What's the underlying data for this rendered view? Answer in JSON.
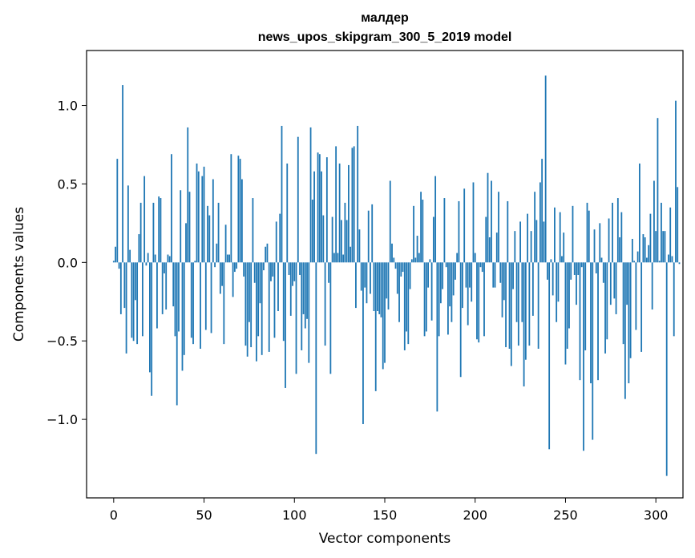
{
  "chart_data": {
    "type": "bar",
    "title_line1": "малдер",
    "title_line2": "news_upos_skipgram_300_5_2019 model",
    "xlabel": "Vector components",
    "ylabel": "Components values",
    "xlim": [
      -15,
      315
    ],
    "ylim": [
      -1.5,
      1.35
    ],
    "xticks": [
      {
        "value": 0,
        "label": "0"
      },
      {
        "value": 50,
        "label": "50"
      },
      {
        "value": 100,
        "label": "100"
      },
      {
        "value": 150,
        "label": "150"
      },
      {
        "value": 200,
        "label": "200"
      },
      {
        "value": 250,
        "label": "250"
      },
      {
        "value": 300,
        "label": "300"
      }
    ],
    "yticks": [
      {
        "value": -1.0,
        "label": "−1.0"
      },
      {
        "value": -0.5,
        "label": "−0.5"
      },
      {
        "value": 0.0,
        "label": "0.0"
      },
      {
        "value": 0.5,
        "label": "0.5"
      },
      {
        "value": 1.0,
        "label": "1.0"
      }
    ],
    "bar_color": "#1f77b4",
    "values": [
      0.01,
      0.1,
      0.66,
      -0.04,
      -0.33,
      1.13,
      -0.29,
      -0.58,
      0.49,
      0.08,
      -0.48,
      -0.5,
      -0.24,
      -0.52,
      0.18,
      0.38,
      -0.47,
      0.55,
      -0.02,
      0.06,
      -0.7,
      -0.85,
      0.38,
      0.05,
      -0.42,
      0.42,
      0.41,
      -0.33,
      -0.07,
      -0.3,
      0.05,
      0.04,
      0.69,
      -0.28,
      -0.47,
      -0.91,
      -0.44,
      0.46,
      -0.69,
      -0.59,
      0.25,
      0.86,
      0.45,
      -0.48,
      -0.52,
      0.01,
      0.63,
      0.58,
      -0.55,
      0.55,
      0.61,
      -0.43,
      0.36,
      0.3,
      -0.45,
      0.53,
      -0.03,
      0.12,
      0.38,
      -0.2,
      -0.15,
      -0.52,
      0.24,
      0.05,
      0.05,
      0.69,
      -0.22,
      -0.06,
      -0.04,
      0.68,
      0.66,
      0.53,
      -0.09,
      -0.53,
      -0.6,
      -0.38,
      -0.54,
      0.41,
      -0.13,
      -0.63,
      -0.47,
      -0.26,
      -0.59,
      -0.05,
      0.1,
      0.12,
      -0.57,
      -0.12,
      -0.09,
      -0.48,
      0.26,
      -0.31,
      0.31,
      0.87,
      -0.5,
      -0.8,
      0.63,
      -0.08,
      -0.34,
      -0.15,
      -0.12,
      -0.71,
      0.8,
      -0.08,
      -0.56,
      -0.33,
      -0.42,
      -0.36,
      -0.64,
      0.86,
      0.4,
      0.58,
      -1.22,
      0.7,
      0.69,
      0.58,
      0.3,
      -0.53,
      0.67,
      -0.13,
      -0.71,
      0.29,
      0.06,
      0.74,
      0.06,
      0.63,
      0.27,
      0.05,
      0.38,
      0.27,
      0.62,
      0.1,
      0.73,
      0.74,
      -0.29,
      0.87,
      0.21,
      -0.18,
      -1.03,
      -0.16,
      -0.26,
      0.33,
      -0.2,
      0.37,
      -0.31,
      -0.82,
      -0.31,
      -0.33,
      -0.35,
      -0.68,
      -0.64,
      -0.23,
      -0.3,
      0.52,
      0.12,
      0.03,
      -0.04,
      -0.2,
      -0.38,
      -0.09,
      -0.06,
      -0.56,
      -0.44,
      -0.52,
      -0.17,
      0.02,
      0.36,
      0.03,
      0.17,
      0.06,
      0.45,
      0.4,
      -0.47,
      -0.44,
      -0.16,
      0.02,
      -0.37,
      0.29,
      0.55,
      -0.95,
      -0.47,
      -0.26,
      -0.17,
      0.41,
      -0.03,
      -0.46,
      -0.28,
      -0.38,
      -0.21,
      -0.11,
      0.06,
      0.39,
      -0.73,
      -0.29,
      0.47,
      -0.16,
      -0.4,
      -0.16,
      -0.25,
      0.51,
      0.06,
      -0.49,
      -0.51,
      -0.03,
      -0.06,
      -0.47,
      0.29,
      0.57,
      0.16,
      0.52,
      -0.16,
      -0.16,
      0.19,
      0.45,
      -0.13,
      -0.35,
      -0.24,
      -0.54,
      0.39,
      -0.55,
      -0.66,
      -0.17,
      0.2,
      -0.38,
      -0.53,
      0.26,
      -0.38,
      -0.79,
      -0.62,
      0.31,
      -0.53,
      0.2,
      -0.34,
      0.45,
      0.27,
      -0.55,
      0.51,
      0.66,
      0.26,
      1.19,
      -0.11,
      -1.19,
      0.02,
      -0.21,
      0.35,
      -0.38,
      -0.25,
      0.32,
      0.04,
      0.19,
      -0.65,
      -0.55,
      -0.42,
      -0.11,
      0.36,
      -0.08,
      -0.27,
      -0.08,
      -0.75,
      -0.03,
      -1.2,
      -0.56,
      0.38,
      0.33,
      -0.77,
      -1.13,
      0.21,
      -0.07,
      -0.75,
      0.25,
      0.03,
      -0.13,
      -0.58,
      -0.49,
      0.28,
      -0.27,
      0.38,
      -0.23,
      -0.33,
      0.41,
      0.16,
      0.32,
      -0.52,
      -0.87,
      -0.27,
      -0.77,
      -0.61,
      0.15,
      0.01,
      -0.43,
      0.07,
      0.63,
      -0.57,
      0.18,
      0.16,
      0.03,
      0.11,
      0.31,
      -0.3,
      0.52,
      0.2,
      0.92,
      0.01,
      0.38,
      0.2,
      0.2,
      -1.36,
      0.05,
      0.35,
      0.04,
      -0.47,
      1.03,
      0.48,
      -0.01
    ]
  }
}
